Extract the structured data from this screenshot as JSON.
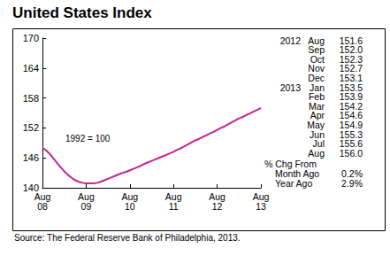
{
  "chart_data": {
    "type": "line",
    "title": "United States Index",
    "annotations": [
      "1992 = 100"
    ],
    "source": "Source: The Federal Reserve Bank of Philadelphia, 2013.",
    "categories": [
      "Aug 08",
      null,
      null,
      null,
      null,
      null,
      null,
      null,
      null,
      null,
      null,
      null,
      "Aug 09",
      null,
      null,
      null,
      null,
      null,
      null,
      null,
      null,
      null,
      null,
      null,
      "Aug 10",
      null,
      null,
      null,
      null,
      null,
      null,
      null,
      null,
      null,
      null,
      null,
      "Aug 11",
      null,
      null,
      null,
      null,
      null,
      null,
      null,
      null,
      null,
      null,
      null,
      "Aug 12",
      null,
      null,
      null,
      null,
      null,
      null,
      null,
      null,
      null,
      null,
      null,
      "Aug 13"
    ],
    "values": [
      148.0,
      147.5,
      146.8,
      145.9,
      145.0,
      144.1,
      143.3,
      142.6,
      142.0,
      141.5,
      141.2,
      141.0,
      140.9,
      140.9,
      140.9,
      141.0,
      141.2,
      141.5,
      141.8,
      142.1,
      142.4,
      142.7,
      143.0,
      143.2,
      143.5,
      143.8,
      144.1,
      144.4,
      144.8,
      145.1,
      145.4,
      145.7,
      146.0,
      146.3,
      146.6,
      146.9,
      147.2,
      147.6,
      147.9,
      148.3,
      148.7,
      149.1,
      149.5,
      149.8,
      150.2,
      150.5,
      150.9,
      151.2,
      151.6,
      152.0,
      152.3,
      152.7,
      153.1,
      153.5,
      153.9,
      154.2,
      154.6,
      154.9,
      155.3,
      155.6,
      156.0
    ],
    "color": "#c0268e",
    "ylim": [
      140,
      170
    ],
    "yticks": [
      140,
      146,
      152,
      158,
      164,
      170
    ],
    "grid": false,
    "side_table": {
      "rows": [
        {
          "year": "2012",
          "month": "Aug",
          "value": "151.6"
        },
        {
          "year": null,
          "month": "Sep",
          "value": "152.0"
        },
        {
          "year": null,
          "month": "Oct",
          "value": "152.3"
        },
        {
          "year": null,
          "month": "Nov",
          "value": "152.7"
        },
        {
          "year": null,
          "month": "Dec",
          "value": "153.1"
        },
        {
          "year": "2013",
          "month": "Jan",
          "value": "153.5"
        },
        {
          "year": null,
          "month": "Feb",
          "value": "153.9"
        },
        {
          "year": null,
          "month": "Mar",
          "value": "154.2"
        },
        {
          "year": null,
          "month": "Apr",
          "value": "154.6"
        },
        {
          "year": null,
          "month": "May",
          "value": "154.9"
        },
        {
          "year": null,
          "month": "Jun",
          "value": "155.3"
        },
        {
          "year": null,
          "month": "Jul",
          "value": "155.6"
        },
        {
          "year": null,
          "month": "Aug",
          "value": "156.0"
        }
      ],
      "change_header": "% Chg From",
      "changes": [
        {
          "label": "Month Ago",
          "value": "0.2%"
        },
        {
          "label": "Year Ago",
          "value": "2.9%"
        }
      ]
    }
  }
}
